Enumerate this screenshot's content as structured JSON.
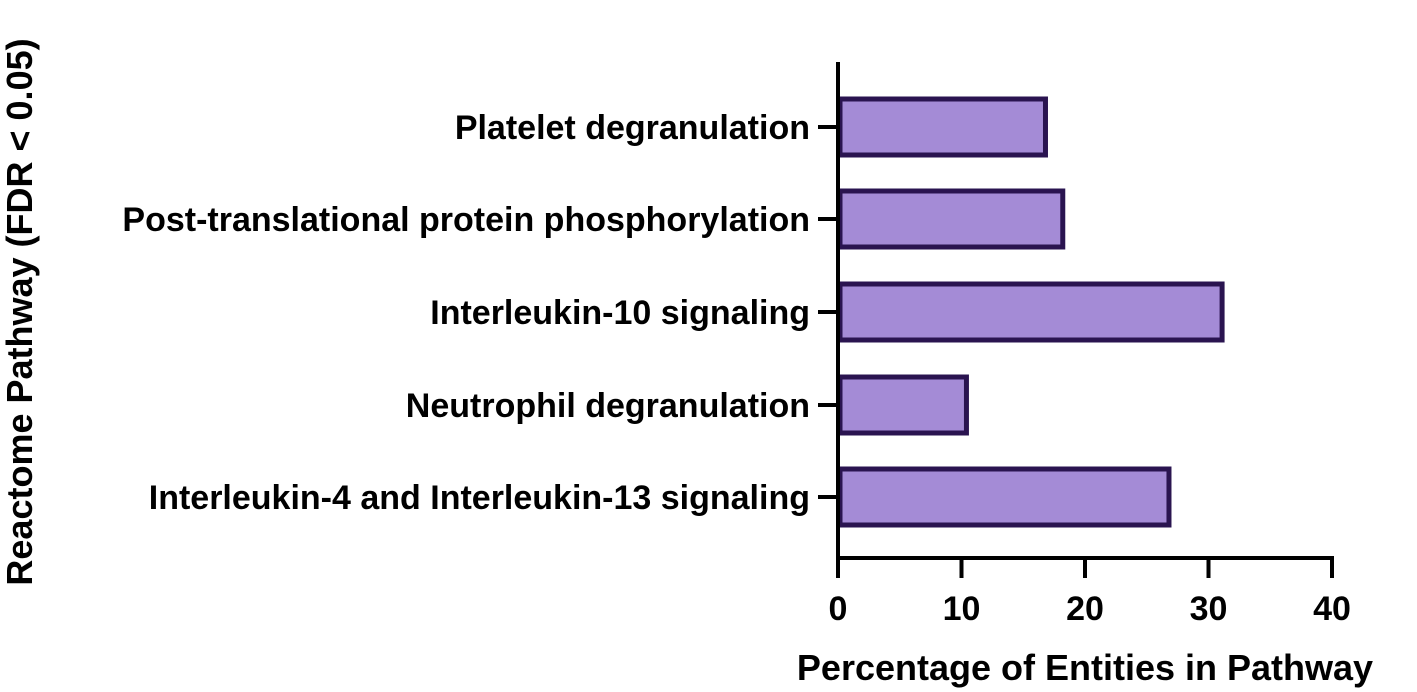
{
  "chart_data": {
    "type": "bar",
    "orientation": "horizontal",
    "categories": [
      "Platelet degranulation",
      "Post-translational protein phosphorylation",
      "Interleukin-10 signaling",
      "Neutrophil degranulation",
      "Interleukin-4 and Interleukin-13 signaling"
    ],
    "values": [
      16.8,
      18.2,
      31.1,
      10.4,
      26.8
    ],
    "xlabel": "Percentage of Entities in Pathway",
    "ylabel": "Reactome Pathway (FDR < 0.05)",
    "xlim": [
      0,
      40
    ],
    "xticks": [
      0,
      10,
      20,
      30,
      40
    ],
    "grid": false,
    "legend": "none",
    "colors": {
      "bar_fill": "#a48bd6",
      "bar_stroke": "#2a1450",
      "axis": "#000000"
    }
  }
}
